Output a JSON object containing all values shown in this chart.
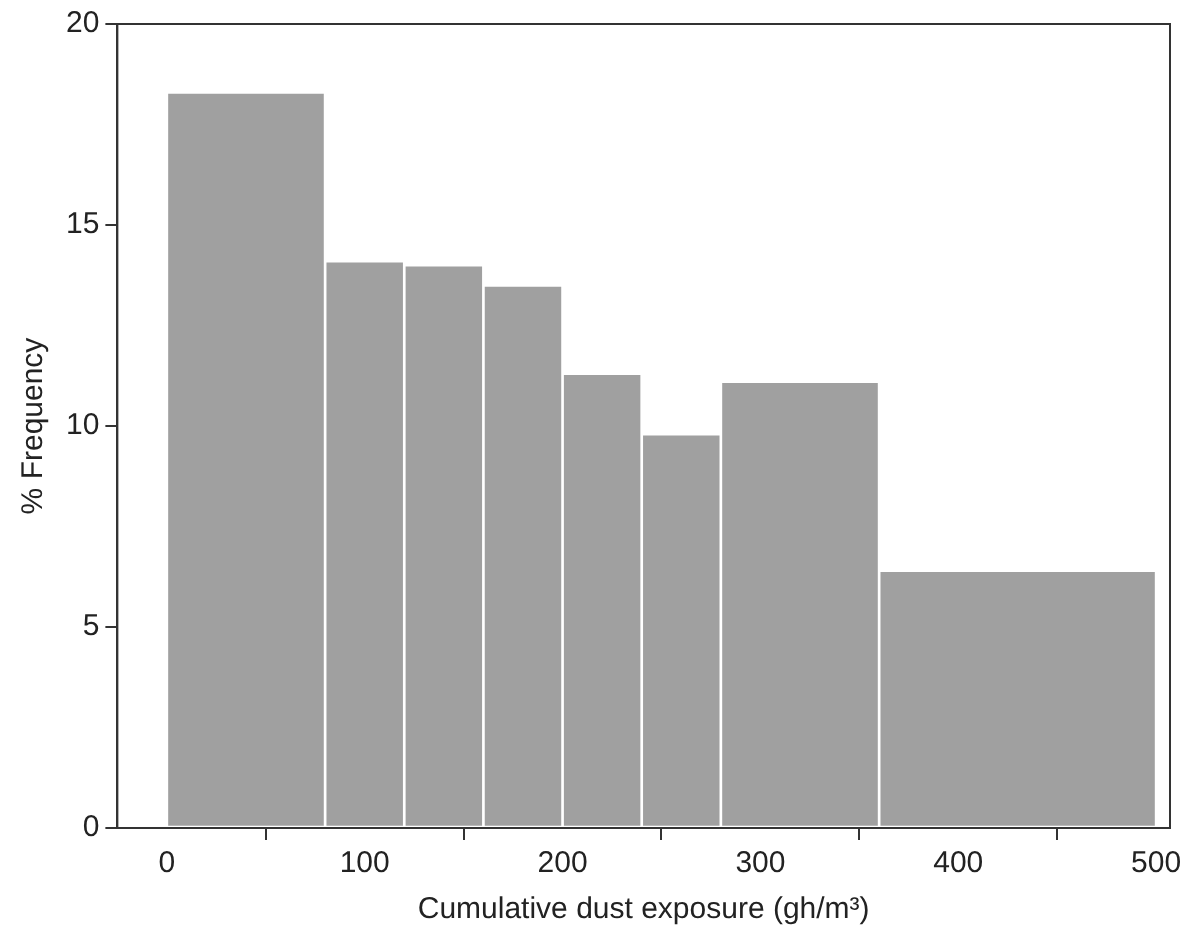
{
  "chart_data": {
    "type": "histogram",
    "xlabel": "Cumulative dust exposure (gh/m³)",
    "ylabel": "% Frequency",
    "bins": [
      0,
      80,
      120,
      160,
      200,
      240,
      280,
      360,
      500
    ],
    "values": [
      18.3,
      14.1,
      14.0,
      13.5,
      11.3,
      9.8,
      11.1,
      6.4
    ],
    "color": "#a0a0a0",
    "xlim": [
      -25,
      507
    ],
    "xticks": [
      0,
      100,
      200,
      300,
      400,
      500
    ],
    "ylim": [
      0,
      20
    ],
    "yticks": [
      0,
      5,
      10,
      15,
      20
    ],
    "grid": false,
    "legend": false
  }
}
